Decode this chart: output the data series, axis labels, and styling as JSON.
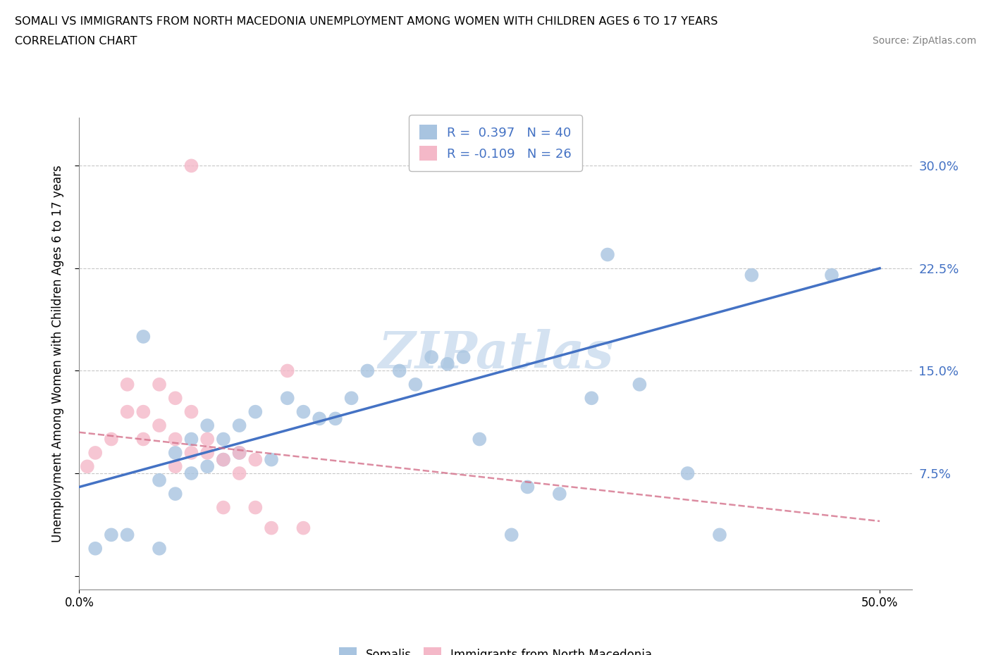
{
  "title_line1": "SOMALI VS IMMIGRANTS FROM NORTH MACEDONIA UNEMPLOYMENT AMONG WOMEN WITH CHILDREN AGES 6 TO 17 YEARS",
  "title_line2": "CORRELATION CHART",
  "source": "Source: ZipAtlas.com",
  "ylabel": "Unemployment Among Women with Children Ages 6 to 17 years",
  "xlim": [
    0.0,
    0.52
  ],
  "ylim": [
    -0.01,
    0.335
  ],
  "yticks": [
    0.0,
    0.075,
    0.15,
    0.225,
    0.3
  ],
  "ytick_labels": [
    "",
    "7.5%",
    "15.0%",
    "22.5%",
    "30.0%"
  ],
  "xticks": [
    0.0,
    0.5
  ],
  "xtick_labels": [
    "0.0%",
    "50.0%"
  ],
  "r_somali": 0.397,
  "n_somali": 40,
  "r_macedonia": -0.109,
  "n_macedonia": 26,
  "somali_color": "#a8c4e0",
  "macedonia_color": "#f4b8c8",
  "somali_line_color": "#4472c4",
  "macedonia_line_color": "#d4708a",
  "grid_color": "#c8c8c8",
  "watermark": "ZIPatlas",
  "somali_x": [
    0.01,
    0.02,
    0.03,
    0.04,
    0.05,
    0.05,
    0.06,
    0.06,
    0.07,
    0.07,
    0.08,
    0.08,
    0.09,
    0.09,
    0.1,
    0.1,
    0.11,
    0.12,
    0.13,
    0.14,
    0.15,
    0.16,
    0.17,
    0.18,
    0.2,
    0.21,
    0.22,
    0.23,
    0.24,
    0.25,
    0.27,
    0.28,
    0.3,
    0.32,
    0.33,
    0.35,
    0.38,
    0.4,
    0.42,
    0.47
  ],
  "somali_y": [
    0.02,
    0.03,
    0.03,
    0.175,
    0.02,
    0.07,
    0.06,
    0.09,
    0.075,
    0.1,
    0.08,
    0.11,
    0.085,
    0.1,
    0.09,
    0.11,
    0.12,
    0.085,
    0.13,
    0.12,
    0.115,
    0.115,
    0.13,
    0.15,
    0.15,
    0.14,
    0.16,
    0.155,
    0.16,
    0.1,
    0.03,
    0.065,
    0.06,
    0.13,
    0.235,
    0.14,
    0.075,
    0.03,
    0.22,
    0.22
  ],
  "macedonia_x": [
    0.005,
    0.01,
    0.02,
    0.03,
    0.03,
    0.04,
    0.04,
    0.05,
    0.05,
    0.06,
    0.06,
    0.06,
    0.07,
    0.07,
    0.07,
    0.08,
    0.08,
    0.09,
    0.09,
    0.1,
    0.1,
    0.11,
    0.11,
    0.12,
    0.13,
    0.14
  ],
  "macedonia_y": [
    0.08,
    0.09,
    0.1,
    0.12,
    0.14,
    0.1,
    0.12,
    0.11,
    0.14,
    0.08,
    0.1,
    0.13,
    0.09,
    0.12,
    0.3,
    0.09,
    0.1,
    0.05,
    0.085,
    0.075,
    0.09,
    0.05,
    0.085,
    0.035,
    0.15,
    0.035
  ],
  "blue_line_x": [
    0.0,
    0.5
  ],
  "blue_line_y": [
    0.065,
    0.225
  ],
  "pink_line_x": [
    0.0,
    0.5
  ],
  "pink_line_y": [
    0.105,
    0.04
  ]
}
